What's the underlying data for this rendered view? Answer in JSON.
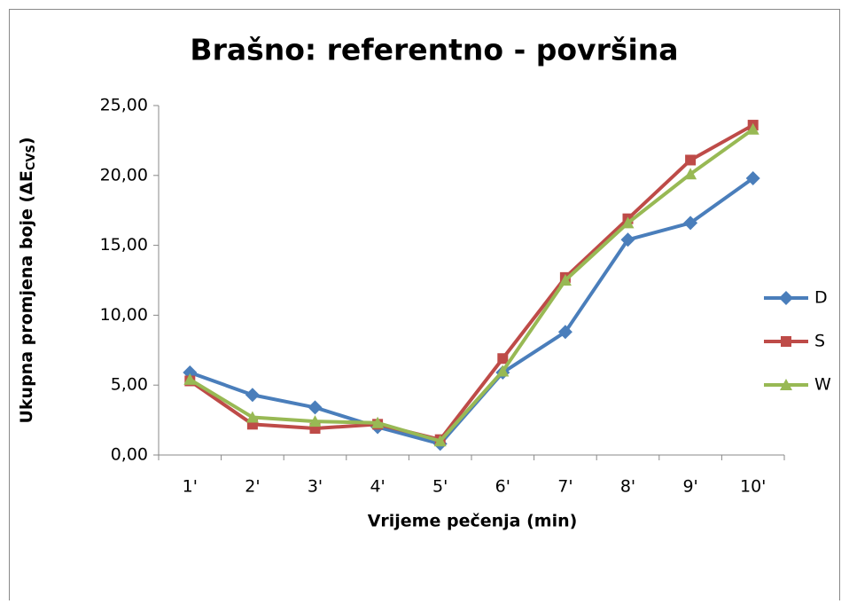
{
  "chart_data": {
    "type": "line",
    "title": "Brašno: referentno - površina",
    "x_label": "Vrijeme pečenja (min)",
    "y_label": {
      "text": "Ukupna promjena boje (ΔE",
      "subscript": "CVS",
      "suffix": ")"
    },
    "categories": [
      "1'",
      "2'",
      "3'",
      "4'",
      "5'",
      "6'",
      "7'",
      "8'",
      "9'",
      "10'"
    ],
    "series": [
      {
        "name": "D",
        "color": "#4a7ebb",
        "marker": "diamond",
        "values": [
          5.9,
          4.3,
          3.4,
          2.0,
          0.8,
          5.9,
          8.8,
          15.4,
          16.6,
          19.8
        ]
      },
      {
        "name": "S",
        "color": "#be4b48",
        "marker": "square",
        "values": [
          5.3,
          2.2,
          1.9,
          2.2,
          1.1,
          6.9,
          12.7,
          16.9,
          21.1,
          23.6
        ]
      },
      {
        "name": "W",
        "color": "#98b954",
        "marker": "triangle",
        "values": [
          5.4,
          2.7,
          2.4,
          2.3,
          1.0,
          6.0,
          12.5,
          16.6,
          20.1,
          23.3
        ]
      }
    ],
    "ylim": [
      0,
      25
    ],
    "yticks": [
      {
        "value": 0,
        "label": "0,00"
      },
      {
        "value": 5,
        "label": "5,00"
      },
      {
        "value": 10,
        "label": "10,00"
      },
      {
        "value": 15,
        "label": "15,00"
      },
      {
        "value": 20,
        "label": "20,00"
      },
      {
        "value": 25,
        "label": "25,00"
      }
    ],
    "grid": false,
    "legend": "right"
  }
}
